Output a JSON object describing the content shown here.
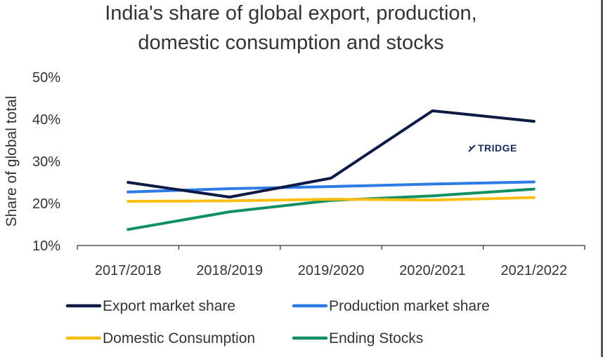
{
  "chart_data": {
    "type": "line",
    "title_lines": [
      "India's share of global export, production,",
      "domestic consumption and stocks"
    ],
    "ylabel": "Share of global total",
    "xlabel": "",
    "categories": [
      "2017/2018",
      "2018/2019",
      "2019/2020",
      "2020/2021",
      "2021/2022"
    ],
    "y_ticks": [
      "10%",
      "20%",
      "30%",
      "40%",
      "50%"
    ],
    "ylim": [
      10,
      50
    ],
    "grid": false,
    "legend_position": "bottom",
    "series": [
      {
        "name": "Export market share",
        "color": "#0c1a45",
        "values": [
          25,
          21.5,
          26,
          42,
          39.5
        ]
      },
      {
        "name": "Production market share",
        "color": "#2d7be5",
        "values": [
          22.7,
          23.5,
          24,
          24.6,
          25.1
        ]
      },
      {
        "name": "Domestic Consumption",
        "color": "#fbbf14",
        "values": [
          20.5,
          20.6,
          21,
          20.8,
          21.4
        ]
      },
      {
        "name": "Ending Stocks",
        "color": "#129060",
        "values": [
          13.8,
          18,
          20.7,
          21.8,
          23.4
        ]
      }
    ],
    "watermark": "TRIDGE"
  }
}
